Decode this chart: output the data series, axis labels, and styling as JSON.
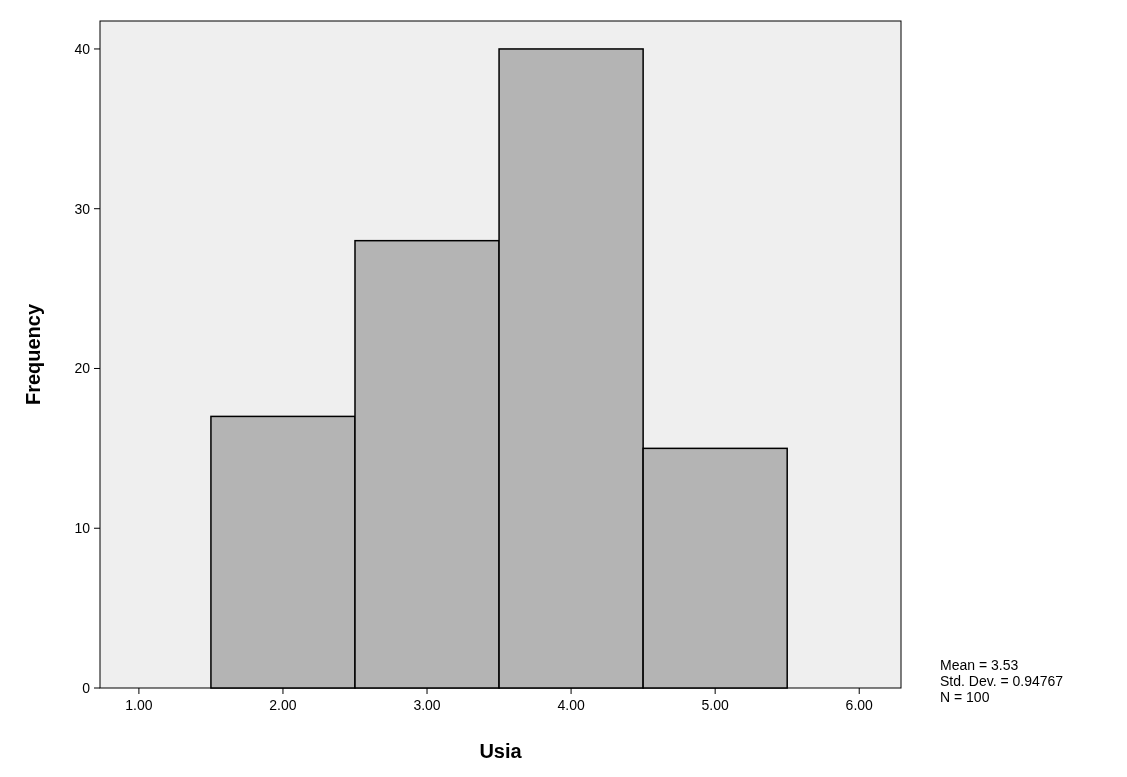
{
  "chart_data": {
    "type": "histogram",
    "xlabel": "Usia",
    "ylabel": "Frequency",
    "bins": [
      1.5,
      2.5,
      3.5,
      4.5,
      5.5
    ],
    "values": [
      17,
      28,
      40,
      15
    ],
    "color": "#b4b4b4",
    "xlim": [
      0.73,
      6.29
    ],
    "xticks": [
      {
        "value": 1,
        "label": "1.00"
      },
      {
        "value": 2,
        "label": "2.00"
      },
      {
        "value": 3,
        "label": "3.00"
      },
      {
        "value": 4,
        "label": "4.00"
      },
      {
        "value": 5,
        "label": "5.00"
      },
      {
        "value": 6,
        "label": "6.00"
      }
    ],
    "ylim": [
      0,
      41.75
    ],
    "yticks": [
      0,
      10,
      20,
      30,
      40
    ],
    "annotations": [
      "Mean = 3.53",
      "Std. Dev. = 0.94767",
      "N = 100"
    ]
  }
}
